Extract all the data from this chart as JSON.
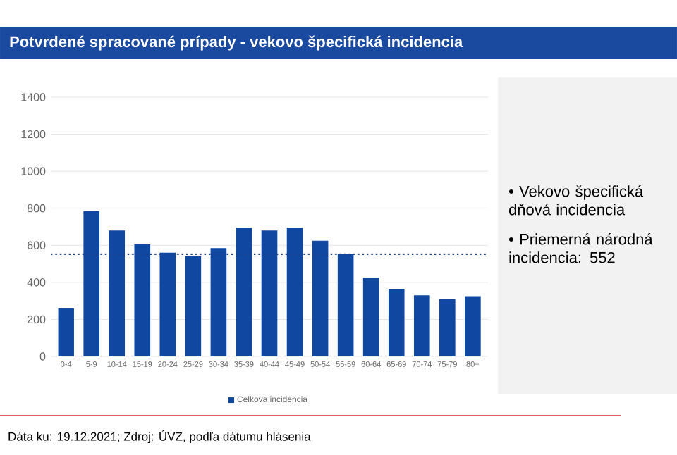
{
  "chart_data": {
    "type": "bar",
    "title": "Potvrdené spracované prípady - vekovo špecifická incidencia",
    "categories": [
      "0-4",
      "5-9",
      "10-14",
      "15-19",
      "20-24",
      "25-29",
      "30-34",
      "35-39",
      "40-44",
      "45-49",
      "50-54",
      "55-59",
      "60-64",
      "65-69",
      "70-74",
      "75-79",
      "80+"
    ],
    "series": [
      {
        "name": "Celkova incidencia",
        "color": "#0f47a1",
        "values": [
          260,
          785,
          680,
          605,
          560,
          540,
          585,
          695,
          680,
          695,
          625,
          555,
          425,
          365,
          330,
          310,
          325
        ]
      }
    ],
    "ylim": [
      0,
      1400
    ],
    "yticks": [
      0,
      200,
      400,
      600,
      800,
      1000,
      1200,
      1400
    ],
    "grid": "y",
    "legend": "bottom",
    "ref_lines": [
      {
        "axis": "y",
        "value": 552,
        "color": "#1f3f8f",
        "line_style": "dotted"
      }
    ],
    "annotations": [
      "• Vekovo špecifická dňová incidencia",
      "• Priemerná národná incidencia: 552",
      "Dáta ku: 19.12.2021; Zdroj: ÚVZ, podľa dátumu hlásenia"
    ]
  }
}
